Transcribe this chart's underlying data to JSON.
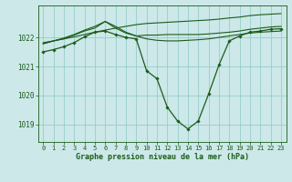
{
  "bg_color": "#cce8e8",
  "grid_color": "#99cccc",
  "line_color": "#1a5c1a",
  "xlabel": "Graphe pression niveau de la mer (hPa)",
  "xlim": [
    -0.5,
    23.5
  ],
  "ylim": [
    1018.4,
    1023.1
  ],
  "yticks": [
    1019,
    1020,
    1021,
    1022
  ],
  "xticks": [
    0,
    1,
    2,
    3,
    4,
    5,
    6,
    7,
    8,
    9,
    10,
    11,
    12,
    13,
    14,
    15,
    16,
    17,
    18,
    19,
    20,
    21,
    22,
    23
  ],
  "series": [
    {
      "x": [
        0,
        1,
        2,
        3,
        4,
        5,
        6,
        7,
        8,
        9,
        10,
        11,
        12,
        13,
        14,
        15,
        16,
        17,
        18,
        19,
        20,
        21,
        22,
        23
      ],
      "y": [
        1021.82,
        1021.88,
        1021.95,
        1022.02,
        1022.1,
        1022.18,
        1022.25,
        1022.32,
        1022.38,
        1022.44,
        1022.48,
        1022.5,
        1022.52,
        1022.54,
        1022.56,
        1022.58,
        1022.6,
        1022.63,
        1022.67,
        1022.7,
        1022.75,
        1022.78,
        1022.8,
        1022.82
      ],
      "marker": false,
      "lw": 0.8
    },
    {
      "x": [
        0,
        1,
        2,
        3,
        4,
        5,
        6,
        7,
        8,
        9,
        10,
        11,
        12,
        13,
        14,
        15,
        16,
        17,
        18,
        19,
        20,
        21,
        22,
        23
      ],
      "y": [
        1021.78,
        1021.88,
        1021.98,
        1022.1,
        1022.25,
        1022.38,
        1022.55,
        1022.38,
        1022.18,
        1022.05,
        1021.95,
        1021.9,
        1021.88,
        1021.88,
        1021.9,
        1021.92,
        1021.95,
        1022.0,
        1022.05,
        1022.1,
        1022.15,
        1022.18,
        1022.2,
        1022.22
      ],
      "marker": false,
      "lw": 0.8
    },
    {
      "x": [
        0,
        1,
        2,
        3,
        4,
        5,
        6,
        7,
        8,
        9,
        10,
        11,
        12,
        13,
        14,
        15,
        16,
        17,
        18,
        19,
        20,
        21,
        22,
        23
      ],
      "y": [
        1021.78,
        1021.88,
        1021.95,
        1022.08,
        1022.22,
        1022.32,
        1022.55,
        1022.32,
        1022.15,
        1022.05,
        1022.08,
        1022.08,
        1022.1,
        1022.1,
        1022.1,
        1022.1,
        1022.12,
        1022.15,
        1022.18,
        1022.22,
        1022.28,
        1022.32,
        1022.36,
        1022.38
      ],
      "marker": false,
      "lw": 0.8
    },
    {
      "x": [
        0,
        1,
        2,
        3,
        4,
        5,
        6,
        7,
        8,
        9,
        10,
        11,
        12,
        13,
        14,
        15,
        16,
        17,
        18,
        19,
        20,
        21,
        22,
        23
      ],
      "y": [
        1021.5,
        1021.58,
        1021.68,
        1021.82,
        1022.02,
        1022.18,
        1022.22,
        1022.1,
        1022.0,
        1021.95,
        1020.85,
        1020.58,
        1019.6,
        1019.12,
        1018.85,
        1019.12,
        1020.05,
        1021.05,
        1021.88,
        1022.05,
        1022.18,
        1022.22,
        1022.28,
        1022.3
      ],
      "marker": true,
      "lw": 0.9
    }
  ]
}
